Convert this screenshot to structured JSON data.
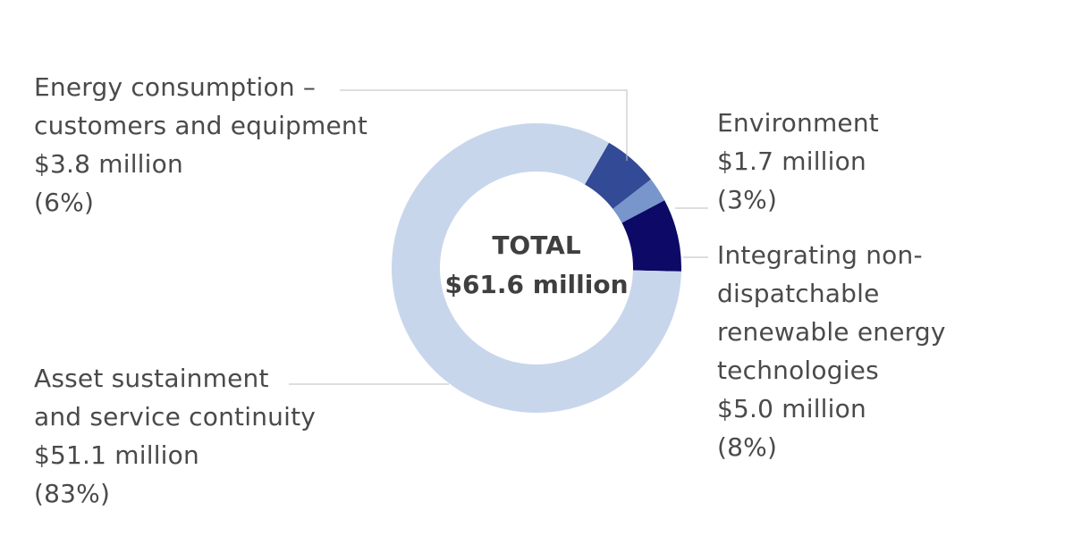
{
  "chart_data": {
    "type": "pie",
    "variant": "donut",
    "center_title": "TOTAL",
    "center_value": "$61.6 million",
    "slices": [
      {
        "name": "Energy consumption – customers and equipment",
        "value": 3.8,
        "percent": 6,
        "value_label": "$3.8 million",
        "percent_label": "(6%)",
        "color": "#334a96",
        "label_lines": [
          "Energy consumption –",
          "customers and equipment"
        ]
      },
      {
        "name": "Environment",
        "value": 1.7,
        "percent": 3,
        "value_label": "$1.7 million",
        "percent_label": "(3%)",
        "color": "#7896cb",
        "label_lines": [
          "Environment"
        ]
      },
      {
        "name": "Integrating non-dispatchable renewable energy technologies",
        "value": 5.0,
        "percent": 8,
        "value_label": "$5.0 million",
        "percent_label": "(8%)",
        "color": "#0c0a66",
        "label_lines": [
          "Integrating non-",
          "dispatchable",
          "renewable energy",
          "technologies"
        ]
      },
      {
        "name": "Asset sustainment and service continuity",
        "value": 51.1,
        "percent": 83,
        "value_label": "$51.1 million",
        "percent_label": "(83%)",
        "color": "#c8d6ec",
        "label_lines": [
          "Asset sustainment",
          "and service continuity"
        ]
      }
    ]
  }
}
